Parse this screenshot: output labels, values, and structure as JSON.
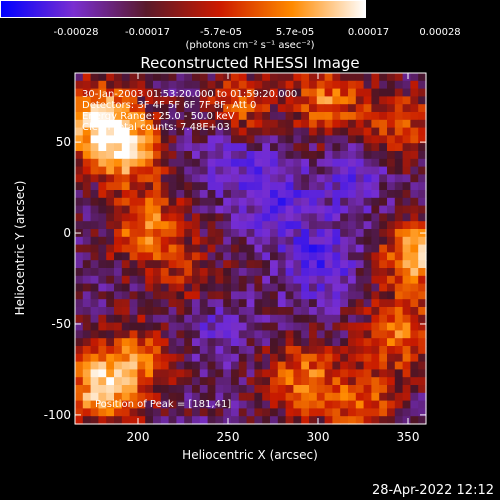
{
  "chart_data": {
    "type": "heatmap",
    "title": "Reconstructed RHESSI Image",
    "xlabel": "Heliocentric X (arcsec)",
    "ylabel": "Heliocentric Y (arcsec)",
    "xlim": [
      165,
      360
    ],
    "ylim": [
      -105,
      88
    ],
    "x_ticks": [
      "200",
      "250",
      "300",
      "350"
    ],
    "x_tick_values": [
      200,
      250,
      300,
      350
    ],
    "y_ticks": [
      "50",
      "0",
      "-50",
      "-100"
    ],
    "y_tick_values": [
      50,
      0,
      -50,
      -100
    ],
    "colorbar": {
      "ticks": [
        "-0.00028",
        "-0.00017",
        "-5.7e-05",
        "5.7e-05",
        "0.00017",
        "0.00028"
      ],
      "tick_values": [
        -0.00028,
        -0.00017,
        -5.7e-05,
        5.7e-05,
        0.00017,
        0.00028
      ],
      "range": [
        -0.00028,
        0.00028
      ],
      "units": "(photons cm⁻² s⁻¹ asec⁻²)",
      "colors": [
        "#0000ff",
        "#7a2fd0",
        "#5a1a2a",
        "#cc1a00",
        "#ff8a00",
        "#ffffff"
      ]
    },
    "annotations": {
      "time": "30-Jan-2003 01:53:20.000 to 01:59:20.000",
      "detectors": "Detectors: 3F 4F 5F 6F 7F 8F, Att 0",
      "energy": "Energy Range: 25.0 - 50.0 keV",
      "method": "Clean      Total counts: 7.48E+03",
      "peak": "Position of Peak = [181,41]"
    },
    "bright_regions": [
      {
        "x": 178,
        "y": 62,
        "value": 0.00028
      },
      {
        "x": 195,
        "y": 45,
        "value": 0.00022
      },
      {
        "x": 205,
        "y": 2,
        "value": 0.0002
      },
      {
        "x": 180,
        "y": -85,
        "value": 0.00026
      },
      {
        "x": 200,
        "y": -70,
        "value": 0.00015
      },
      {
        "x": 255,
        "y": 68,
        "value": 0.00016
      },
      {
        "x": 305,
        "y": 72,
        "value": 0.00018
      },
      {
        "x": 345,
        "y": 60,
        "value": 0.00014
      },
      {
        "x": 355,
        "y": -12,
        "value": 0.00024
      },
      {
        "x": 345,
        "y": -55,
        "value": 0.00018
      },
      {
        "x": 292,
        "y": -80,
        "value": 0.00019
      },
      {
        "x": 325,
        "y": -95,
        "value": 0.00016
      },
      {
        "x": 230,
        "y": -25,
        "value": 0.0001
      }
    ],
    "dim_regions": [
      {
        "x": 275,
        "y": 20,
        "value": -0.00012
      },
      {
        "x": 300,
        "y": -15,
        "value": -0.00014
      },
      {
        "x": 250,
        "y": 45,
        "value": -0.0001
      },
      {
        "x": 240,
        "y": -50,
        "value": -8e-05
      },
      {
        "x": 320,
        "y": 30,
        "value": -9e-05
      }
    ]
  },
  "timestamp": "28-Apr-2022 12:12"
}
